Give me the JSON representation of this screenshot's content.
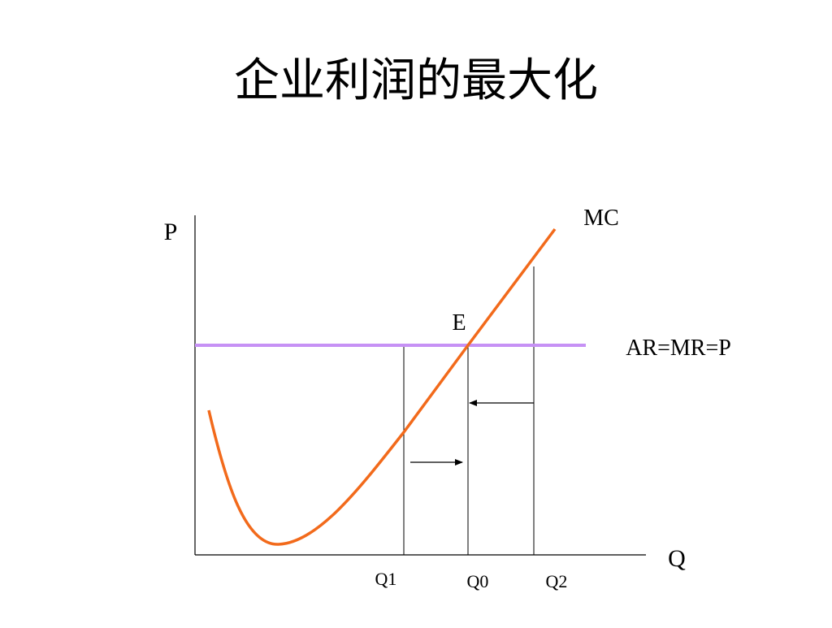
{
  "title": "企业利润的最大化",
  "axes": {
    "y_label": "P",
    "x_label": "Q"
  },
  "curves": {
    "mc": "MC",
    "price_line": "AR=MR=P"
  },
  "point": "E",
  "quantities": [
    "Q1",
    "Q0",
    "Q2"
  ]
}
